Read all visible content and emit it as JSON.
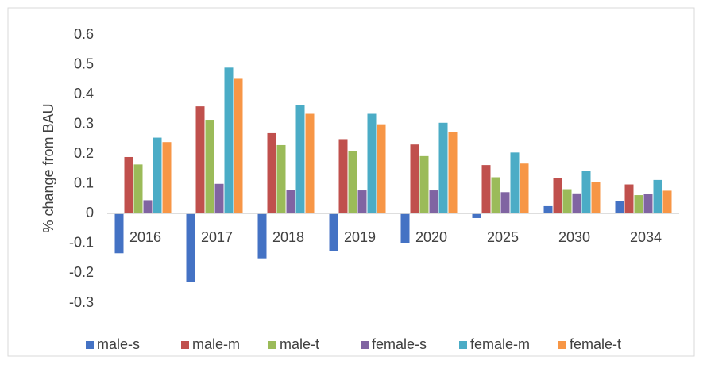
{
  "chart_data": {
    "type": "bar",
    "y_label": "% change from BAU",
    "categories": [
      "2016",
      "2017",
      "2018",
      "2019",
      "2020",
      "2025",
      "2030",
      "2034"
    ],
    "series": [
      {
        "name": "male-s",
        "color": "#4472c4",
        "values": [
          -0.133,
          -0.23,
          -0.15,
          -0.125,
          -0.1,
          -0.015,
          0.025,
          0.042
        ]
      },
      {
        "name": "male-m",
        "color": "#c0504d",
        "values": [
          0.19,
          0.36,
          0.27,
          0.25,
          0.232,
          0.163,
          0.12,
          0.098
        ]
      },
      {
        "name": "male-t",
        "color": "#9bbb59",
        "values": [
          0.165,
          0.315,
          0.23,
          0.21,
          0.193,
          0.122,
          0.082,
          0.062
        ]
      },
      {
        "name": "female-s",
        "color": "#8064a2",
        "values": [
          0.045,
          0.1,
          0.08,
          0.078,
          0.078,
          0.072,
          0.068,
          0.065
        ]
      },
      {
        "name": "female-m",
        "color": "#4bacc6",
        "values": [
          0.255,
          0.49,
          0.365,
          0.335,
          0.305,
          0.205,
          0.143,
          0.113
        ]
      },
      {
        "name": "female-t",
        "color": "#f79646",
        "values": [
          0.24,
          0.455,
          0.335,
          0.3,
          0.275,
          0.168,
          0.107,
          0.077
        ]
      }
    ],
    "ylim": [
      -0.3,
      0.6
    ],
    "yticks": [
      -0.3,
      -0.2,
      -0.1,
      0,
      0.1,
      0.2,
      0.3,
      0.4,
      0.5,
      0.6
    ],
    "legend": "bottom"
  }
}
